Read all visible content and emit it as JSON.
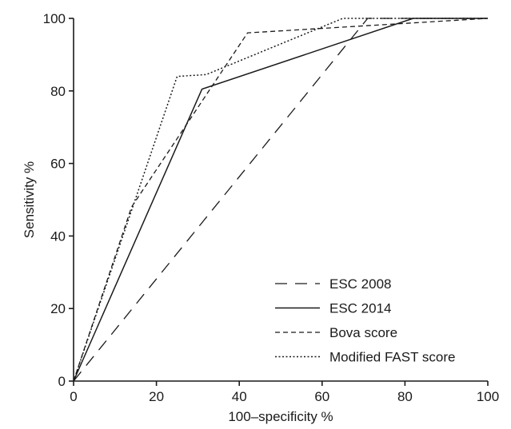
{
  "chart_data": {
    "type": "line",
    "title": "",
    "xlabel": "100–specificity %",
    "ylabel": "Sensitivity %",
    "xlim": [
      0,
      100
    ],
    "ylim": [
      0,
      100
    ],
    "xticks": [
      0,
      20,
      40,
      60,
      80,
      100
    ],
    "yticks": [
      0,
      20,
      40,
      60,
      80,
      100
    ],
    "grid": false,
    "legend_position": "bottom-right",
    "series": [
      {
        "name": "ESC 2008",
        "line_style": "long-dash",
        "color": "#1a1a1a",
        "x": [
          0,
          71,
          100
        ],
        "y": [
          0,
          100,
          100
        ]
      },
      {
        "name": "ESC 2014",
        "line_style": "solid",
        "color": "#1a1a1a",
        "x": [
          0,
          31,
          82,
          100
        ],
        "y": [
          0,
          80.5,
          100,
          100
        ]
      },
      {
        "name": "Bova score",
        "line_style": "short-dash",
        "color": "#1a1a1a",
        "x": [
          0,
          14,
          42,
          100
        ],
        "y": [
          0,
          48,
          96,
          100
        ]
      },
      {
        "name": "Modified FAST score",
        "line_style": "dotted",
        "color": "#1a1a1a",
        "x": [
          0,
          25,
          32,
          65,
          80,
          100
        ],
        "y": [
          0,
          84,
          84.5,
          100,
          100,
          100
        ]
      }
    ]
  }
}
